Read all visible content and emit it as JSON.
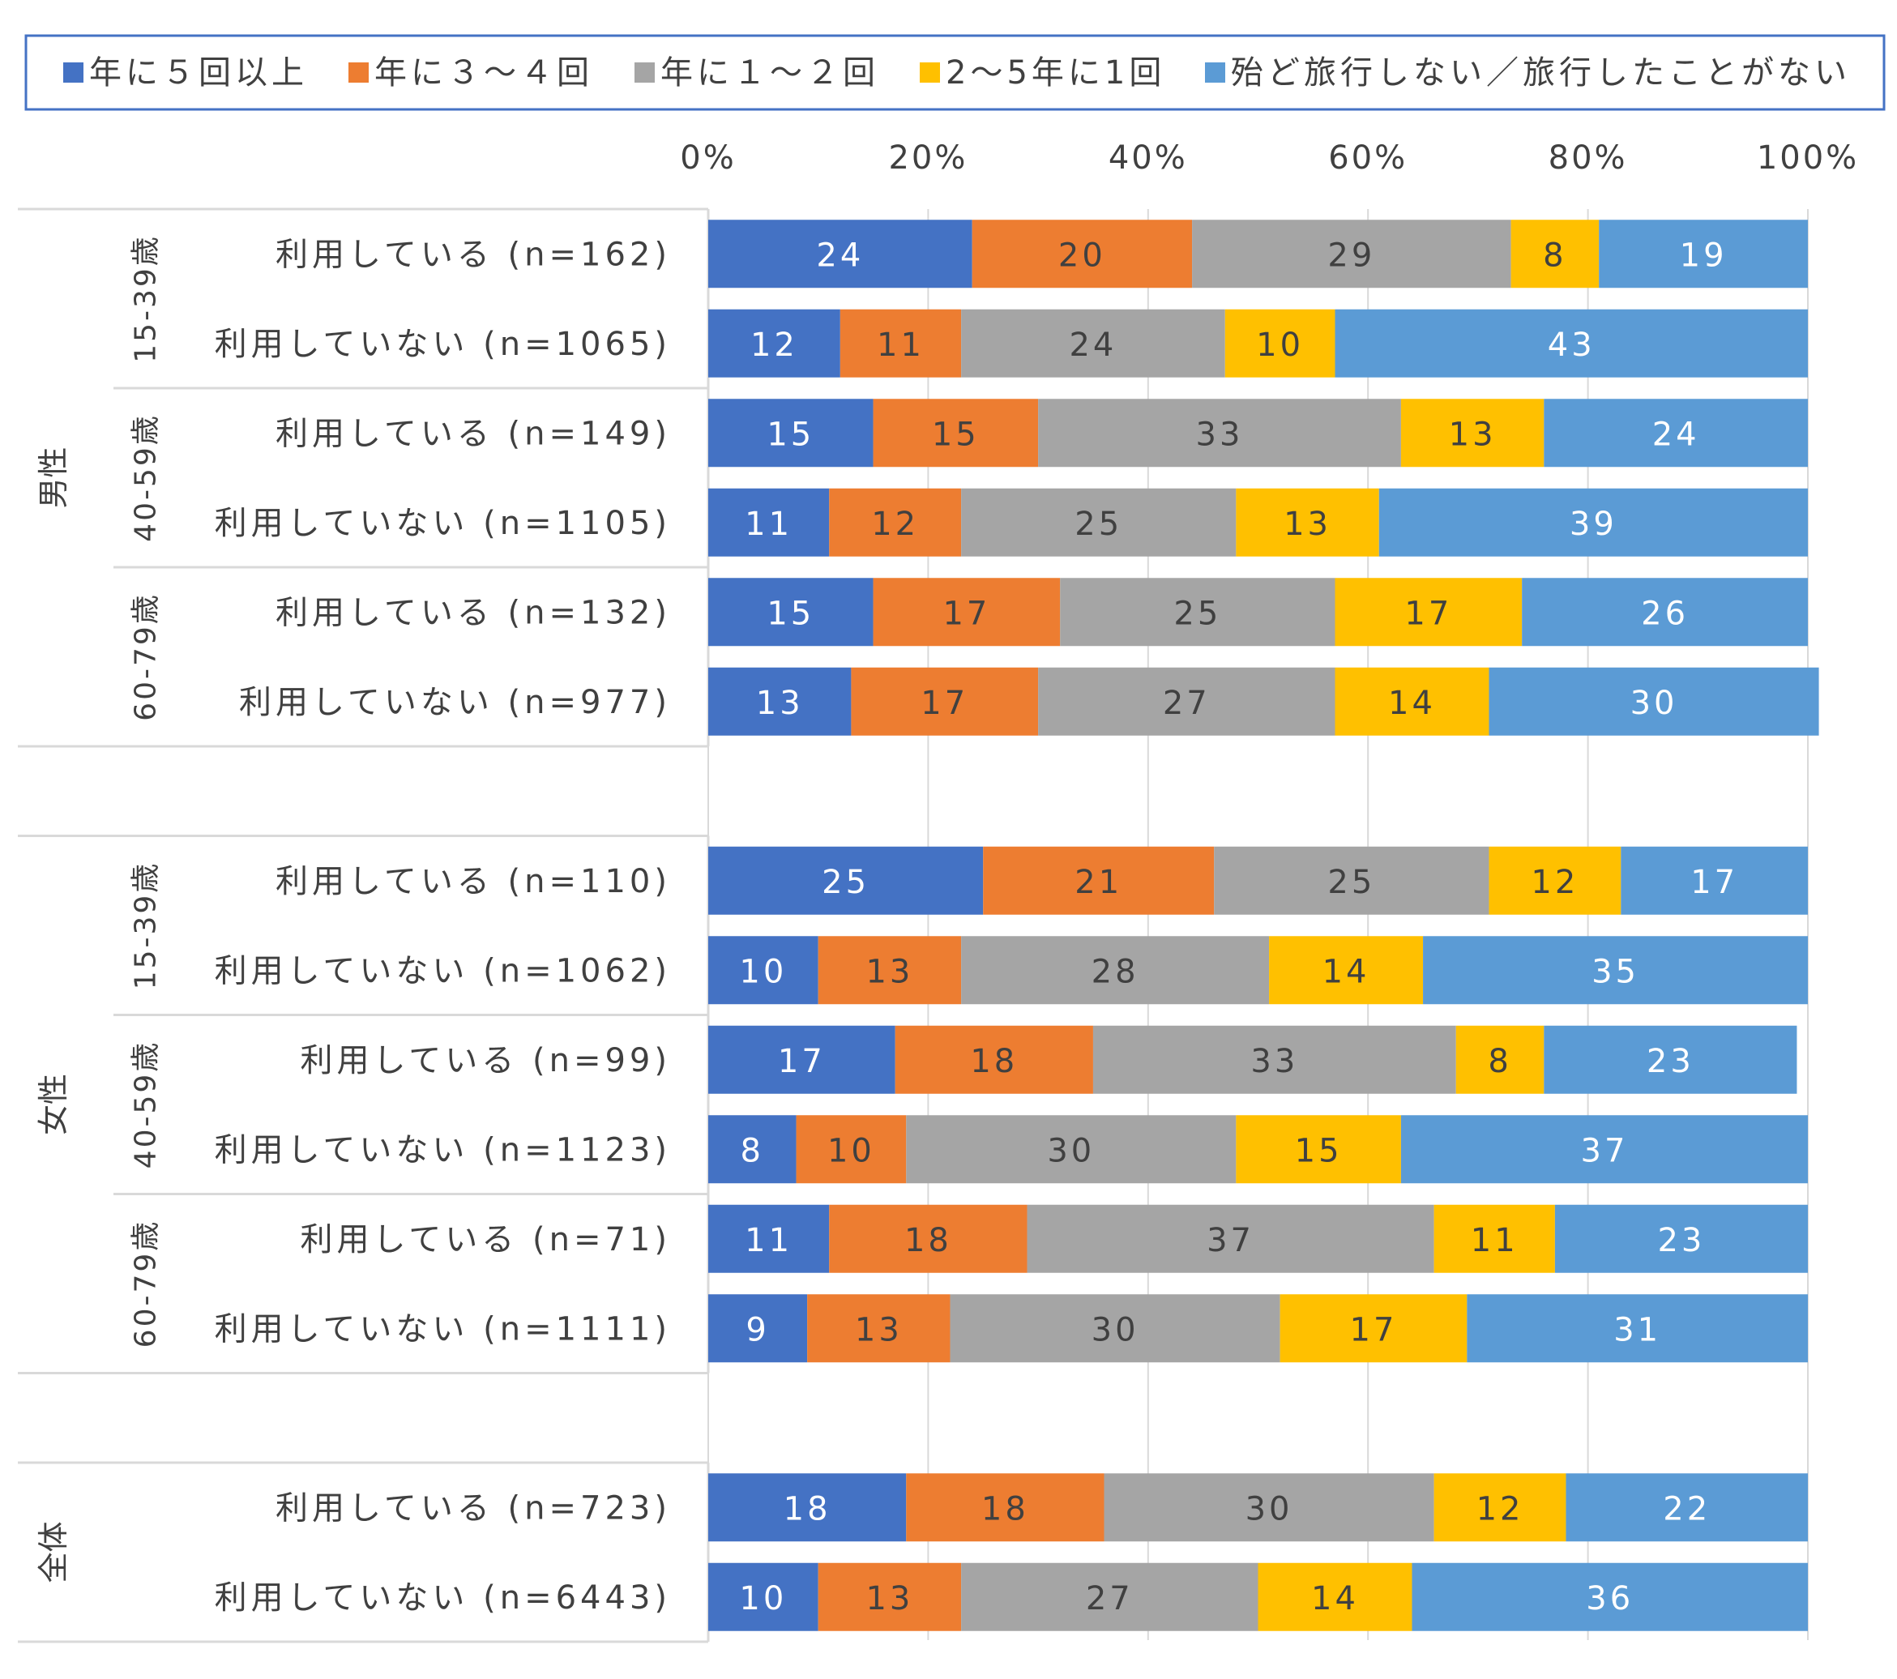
{
  "chart_data": {
    "type": "bar",
    "orientation": "horizontal",
    "stacked": "percent",
    "xlim": [
      0,
      100
    ],
    "x_ticks": [
      "0%",
      "20%",
      "40%",
      "60%",
      "80%",
      "100%"
    ],
    "grid": true,
    "legend_position": "top",
    "series": [
      {
        "name": "年に５回以上",
        "color": "#4472C4",
        "label_color": "#ffffff"
      },
      {
        "name": "年に３～４回",
        "color": "#ED7D31",
        "label_color": "#404040"
      },
      {
        "name": "年に１～２回",
        "color": "#A5A5A5",
        "label_color": "#404040"
      },
      {
        "name": "2～5年に1回",
        "color": "#FFC000",
        "label_color": "#404040"
      },
      {
        "name": "殆ど旅行しない／旅行したことがない",
        "color": "#5B9BD5",
        "label_color": "#ffffff"
      }
    ],
    "groups": [
      {
        "name": "男性",
        "subgroups": [
          {
            "age": "15-39歳",
            "rows": [
              {
                "label": "利用している (n=162)",
                "values": [
                  24,
                  20,
                  29,
                  8,
                  19
                ]
              },
              {
                "label": "利用していない (n=1065)",
                "values": [
                  12,
                  11,
                  24,
                  10,
                  43
                ]
              }
            ]
          },
          {
            "age": "40-59歳",
            "rows": [
              {
                "label": "利用している (n=149)",
                "values": [
                  15,
                  15,
                  33,
                  13,
                  24
                ]
              },
              {
                "label": "利用していない (n=1105)",
                "values": [
                  11,
                  12,
                  25,
                  13,
                  39
                ]
              }
            ]
          },
          {
            "age": "60-79歳",
            "rows": [
              {
                "label": "利用している (n=132)",
                "values": [
                  15,
                  17,
                  25,
                  17,
                  26
                ]
              },
              {
                "label": "利用していない (n=977)",
                "values": [
                  13,
                  17,
                  27,
                  14,
                  30
                ]
              }
            ]
          }
        ]
      },
      {
        "name": "女性",
        "subgroups": [
          {
            "age": "15-39歳",
            "rows": [
              {
                "label": "利用している (n=110)",
                "values": [
                  25,
                  21,
                  25,
                  12,
                  17
                ]
              },
              {
                "label": "利用していない (n=1062)",
                "values": [
                  10,
                  13,
                  28,
                  14,
                  35
                ]
              }
            ]
          },
          {
            "age": "40-59歳",
            "rows": [
              {
                "label": "利用している (n=99)",
                "values": [
                  17,
                  18,
                  33,
                  8,
                  23
                ]
              },
              {
                "label": "利用していない (n=1123)",
                "values": [
                  8,
                  10,
                  30,
                  15,
                  37
                ]
              }
            ]
          },
          {
            "age": "60-79歳",
            "rows": [
              {
                "label": "利用している (n=71)",
                "values": [
                  11,
                  18,
                  37,
                  11,
                  23
                ]
              },
              {
                "label": "利用していない (n=1111)",
                "values": [
                  9,
                  13,
                  30,
                  17,
                  31
                ]
              }
            ]
          }
        ]
      },
      {
        "name": "全体",
        "subgroups": [
          {
            "age": "",
            "rows": [
              {
                "label": "利用している (n=723)",
                "values": [
                  18,
                  18,
                  30,
                  12,
                  22
                ]
              },
              {
                "label": "利用していない (n=6443)",
                "values": [
                  10,
                  13,
                  27,
                  14,
                  36
                ]
              }
            ]
          }
        ]
      }
    ]
  }
}
